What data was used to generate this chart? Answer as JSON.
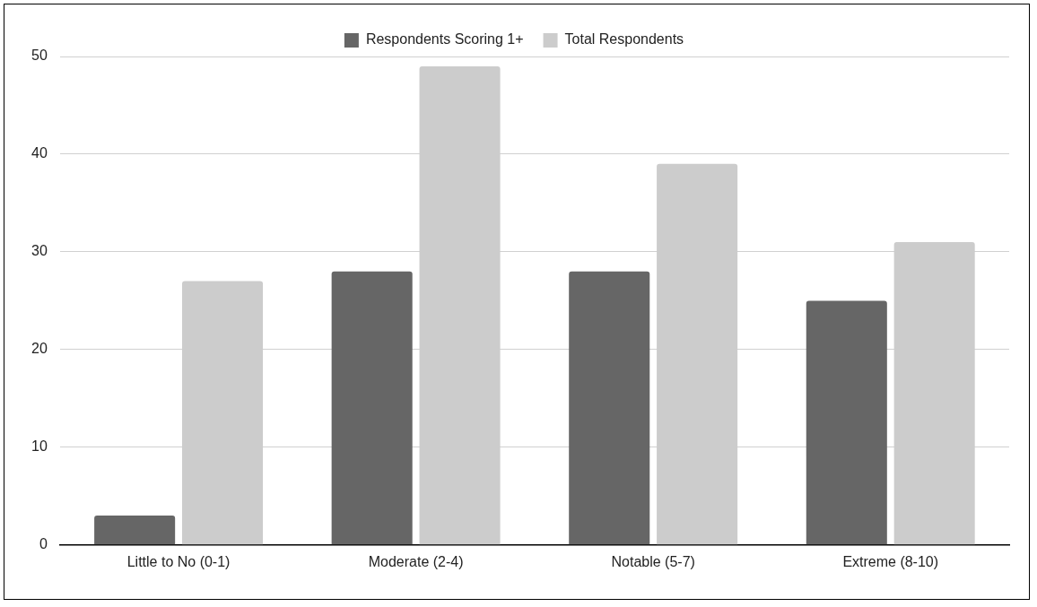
{
  "chart_data": {
    "type": "bar",
    "categories": [
      "Little to No (0-1)",
      "Moderate (2-4)",
      "Notable (5-7)",
      "Extreme (8-10)"
    ],
    "series": [
      {
        "name": "Respondents Scoring 1+",
        "color": "#666666",
        "values": [
          3,
          28,
          28,
          25
        ]
      },
      {
        "name": "Total Respondents",
        "color": "#cccccc",
        "values": [
          27,
          49,
          39,
          31
        ]
      }
    ],
    "ylim": [
      0,
      50
    ],
    "yticks": [
      0,
      10,
      20,
      30,
      40,
      50
    ],
    "grid": "y",
    "legend": "top"
  }
}
